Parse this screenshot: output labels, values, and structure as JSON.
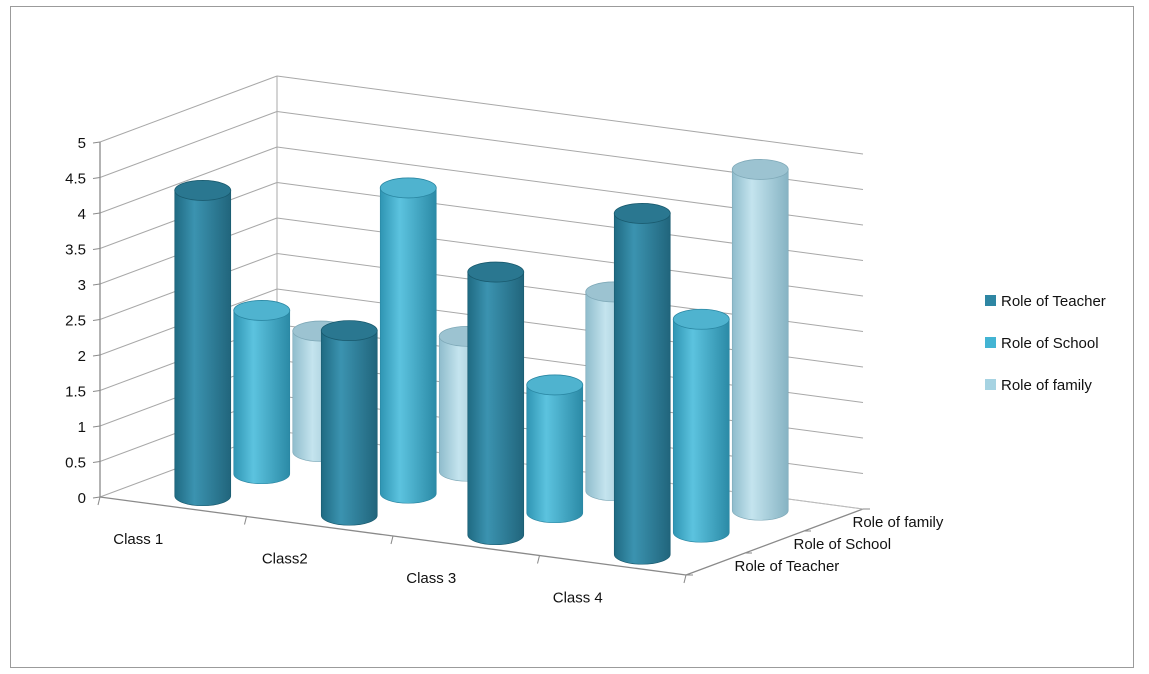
{
  "chart_data": {
    "type": "bar",
    "subtype": "3d-cylinder",
    "title": "",
    "categories": [
      "Class 1",
      "Class2",
      "Class 3",
      "Class 4"
    ],
    "series": [
      {
        "name": "Role of Teacher",
        "color": "#2e86a3",
        "values": [
          4.3,
          2.6,
          3.7,
          4.8
        ]
      },
      {
        "name": "Role of School",
        "color": "#43b4d3",
        "values": [
          2.3,
          4.3,
          1.8,
          3.0
        ]
      },
      {
        "name": "Role of family",
        "color": "#a6d3e2",
        "values": [
          1.7,
          1.9,
          2.8,
          4.8
        ]
      }
    ],
    "yticks": [
      "0",
      "0.5",
      "1",
      "1.5",
      "2",
      "2.5",
      "3",
      "3.5",
      "4",
      "4.5",
      "5"
    ],
    "ylim": [
      0,
      5
    ],
    "depth_labels": [
      "Role of Teacher",
      "Role of School",
      "Role of family"
    ],
    "legend_position": "right",
    "grid": true
  }
}
